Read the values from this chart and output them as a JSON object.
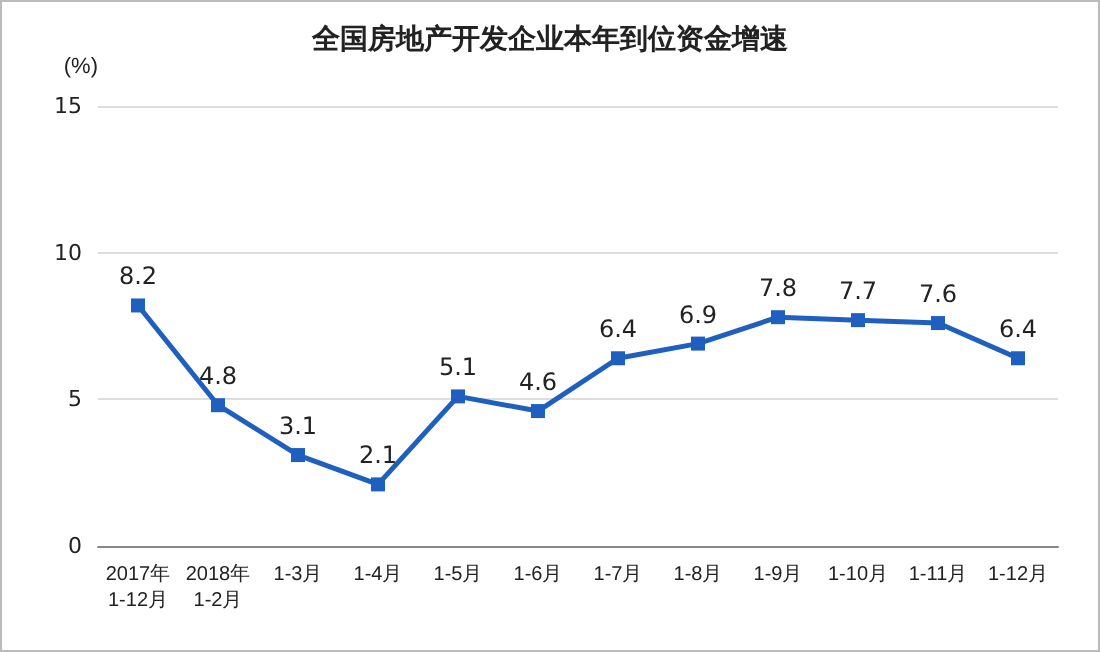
{
  "chart_data": {
    "type": "line",
    "title": "全国房地产开发企业本年到位资金增速",
    "ylabel": "(%)",
    "categories": [
      "2017年\n1-12月",
      "2018年\n1-2月",
      "1-3月",
      "1-4月",
      "1-5月",
      "1-6月",
      "1-7月",
      "1-8月",
      "1-9月",
      "1-10月",
      "1-11月",
      "1-12月"
    ],
    "values": [
      8.2,
      4.8,
      3.1,
      2.1,
      5.1,
      4.6,
      6.4,
      6.9,
      7.8,
      7.7,
      7.6,
      6.4
    ],
    "color": "#1f5fbf",
    "ylim": [
      0,
      15
    ],
    "yticks": [
      0,
      5,
      10,
      15
    ],
    "grid": "y",
    "marker": "square",
    "line_style": "solid",
    "data_labels": true
  }
}
